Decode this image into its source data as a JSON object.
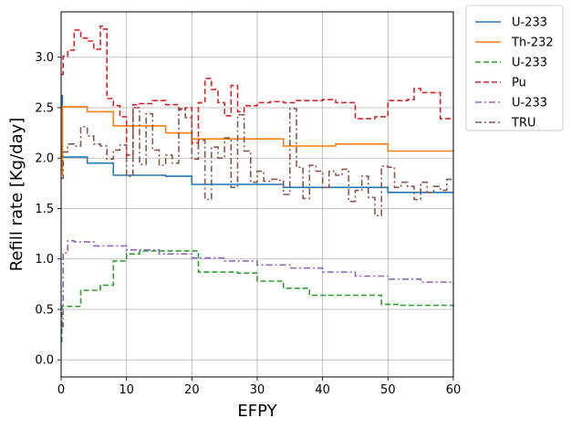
{
  "chart_data": {
    "type": "line",
    "title": "",
    "xlabel": "EFPY",
    "ylabel": "Refill rate [Kg/day]",
    "xlim": [
      0,
      60
    ],
    "ylim": [
      -0.17,
      3.45
    ],
    "xticks": [
      0,
      10,
      20,
      30,
      40,
      50,
      60
    ],
    "yticks": [
      0.0,
      0.5,
      1.0,
      1.5,
      2.0,
      2.5,
      3.0
    ],
    "grid": true,
    "legend": "outside top-right",
    "step": true,
    "series": [
      {
        "name": "U-233",
        "color": "#1f77b4",
        "dash": "solid",
        "x": [
          0,
          0.2,
          4,
          8,
          16,
          20,
          34,
          50,
          60
        ],
        "y": [
          2.62,
          2.01,
          1.95,
          1.83,
          1.82,
          1.74,
          1.71,
          1.66,
          1.66
        ]
      },
      {
        "name": "Th-232",
        "color": "#ff7f0e",
        "dash": "solid",
        "x": [
          0,
          0.2,
          4,
          8,
          16,
          20,
          34,
          42,
          50,
          60
        ],
        "y": [
          1.85,
          2.51,
          2.46,
          2.32,
          2.25,
          2.19,
          2.12,
          2.14,
          2.07,
          2.07
        ]
      },
      {
        "name": "U-233",
        "color": "#2ca02c",
        "dash": "dashed",
        "x": [
          0,
          0.1,
          3,
          6,
          8,
          10,
          12,
          21,
          27,
          30,
          34,
          38,
          49,
          52,
          60
        ],
        "y": [
          0.18,
          0.53,
          0.69,
          0.74,
          0.98,
          1.05,
          1.08,
          0.87,
          0.86,
          0.78,
          0.71,
          0.64,
          0.55,
          0.54,
          0.53
        ],
        "detail_x": [
          0,
          0.1,
          3,
          3.5,
          4,
          5,
          6,
          7,
          8,
          8.5,
          9,
          10,
          10.5,
          11,
          12,
          14,
          16,
          18,
          20,
          21,
          24,
          24.5,
          25,
          27,
          30,
          34,
          38,
          49,
          50,
          52,
          60
        ]
      },
      {
        "name": "Pu",
        "color": "#d62728",
        "dash": "dashed",
        "x": [
          0,
          0.3,
          1,
          2,
          3,
          4,
          5,
          6,
          6.5,
          7,
          8,
          9,
          10,
          11,
          12,
          14,
          16,
          18,
          19,
          20,
          21,
          22,
          23,
          24,
          25,
          26,
          27,
          28,
          30,
          32,
          34,
          36,
          40,
          42,
          45,
          48,
          50,
          53,
          54,
          55,
          58,
          60
        ],
        "y": [
          2.83,
          3.01,
          3.07,
          3.27,
          3.19,
          3.16,
          3.08,
          3.31,
          3.28,
          2.59,
          2.52,
          2.41,
          2.03,
          2.53,
          2.54,
          2.57,
          2.53,
          2.48,
          2.5,
          2.15,
          2.55,
          2.79,
          2.68,
          2.55,
          2.42,
          2.72,
          2.46,
          2.52,
          2.55,
          2.56,
          2.55,
          2.57,
          2.58,
          2.55,
          2.39,
          2.41,
          2.57,
          2.58,
          2.69,
          2.65,
          2.39,
          2.39
        ]
      },
      {
        "name": "U-233",
        "color": "#9467bd",
        "dash": "dashdot",
        "x": [
          0,
          0.3,
          1,
          2,
          5,
          10,
          15,
          20,
          25,
          30,
          35,
          40,
          45,
          50,
          55,
          60
        ],
        "y": [
          0.33,
          1.06,
          1.18,
          1.17,
          1.13,
          1.09,
          1.05,
          1.01,
          0.98,
          0.94,
          0.91,
          0.87,
          0.83,
          0.8,
          0.77,
          0.75
        ]
      },
      {
        "name": "TRU",
        "color": "#8c564b",
        "dash": "dashdot",
        "x": [
          0,
          0.3,
          1,
          2,
          3,
          4,
          5,
          6,
          7,
          8,
          9,
          10,
          11,
          12,
          13,
          14,
          15,
          16,
          17,
          18,
          19,
          20,
          21,
          22,
          23,
          24,
          25,
          26,
          27,
          28,
          29,
          30,
          31,
          32,
          33,
          34,
          35,
          36,
          37,
          38,
          39,
          40,
          41,
          42,
          43,
          44,
          45,
          46,
          47,
          48,
          49,
          50,
          51,
          52,
          53,
          54,
          55,
          56,
          57,
          58,
          59,
          60
        ],
        "y": [
          1.8,
          2.06,
          2.14,
          2.12,
          2.31,
          2.22,
          2.14,
          2.12,
          1.99,
          2.08,
          2.13,
          1.82,
          2.5,
          1.94,
          2.44,
          2.08,
          1.93,
          2.03,
          1.95,
          2.49,
          2.4,
          1.99,
          2.18,
          1.59,
          2.11,
          2.0,
          2.2,
          1.71,
          2.43,
          2.07,
          1.76,
          1.87,
          1.77,
          1.79,
          1.78,
          1.64,
          2.49,
          1.91,
          1.6,
          1.93,
          1.87,
          1.71,
          1.87,
          1.83,
          1.89,
          1.57,
          1.68,
          1.82,
          1.61,
          1.43,
          1.92,
          1.91,
          1.71,
          1.76,
          1.72,
          1.59,
          1.76,
          1.66,
          1.72,
          1.68,
          1.79,
          1.79
        ]
      }
    ]
  }
}
